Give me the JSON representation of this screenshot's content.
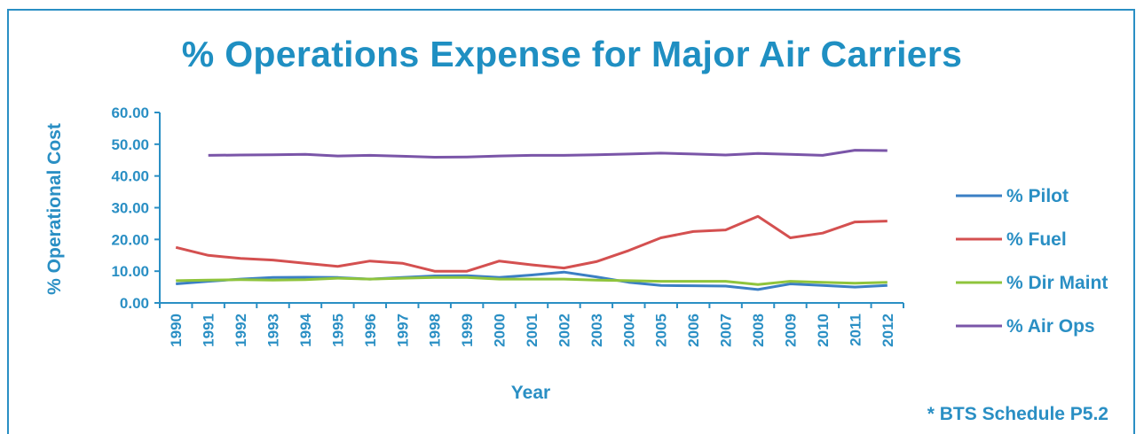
{
  "chart_data": {
    "type": "line",
    "title": "% Operations Expense for Major Air Carriers",
    "xlabel": "Year",
    "ylabel": "% Operational Cost",
    "ylim": [
      0,
      60
    ],
    "yticks": [
      "0.00",
      "10.00",
      "20.00",
      "30.00",
      "40.00",
      "50.00",
      "60.00"
    ],
    "categories": [
      "1990",
      "1991",
      "1992",
      "1993",
      "1994",
      "1995",
      "1996",
      "1997",
      "1998",
      "1999",
      "2000",
      "2001",
      "2002",
      "2003",
      "2004",
      "2005",
      "2006",
      "2007",
      "2008",
      "2009",
      "2010",
      "2011",
      "2012"
    ],
    "series": [
      {
        "name": "% Pilot",
        "color": "#3b7fc4",
        "values": [
          6.0,
          6.8,
          7.5,
          8.0,
          8.1,
          8.0,
          7.5,
          8.0,
          8.5,
          8.6,
          8.0,
          8.8,
          9.7,
          8.2,
          6.5,
          5.5,
          5.4,
          5.3,
          4.2,
          6.0,
          5.5,
          5.0,
          5.5
        ]
      },
      {
        "name": "% Fuel",
        "color": "#d45050",
        "values": [
          17.5,
          15.0,
          14.0,
          13.5,
          12.5,
          11.5,
          13.2,
          12.5,
          10.0,
          10.0,
          13.2,
          12.0,
          11.0,
          13.0,
          16.5,
          20.5,
          22.5,
          23.0,
          27.3,
          20.5,
          22.0,
          25.5,
          25.8
        ]
      },
      {
        "name": "% Dir Maint",
        "color": "#8fc43c",
        "values": [
          7.0,
          7.2,
          7.3,
          7.2,
          7.3,
          7.8,
          7.5,
          7.8,
          8.0,
          8.0,
          7.5,
          7.5,
          7.5,
          7.2,
          7.0,
          6.8,
          6.8,
          6.8,
          5.8,
          6.8,
          6.5,
          6.2,
          6.5
        ]
      },
      {
        "name": "% Air Ops",
        "color": "#7a55a8",
        "values": [
          null,
          46.5,
          46.6,
          46.7,
          46.8,
          46.3,
          46.5,
          46.2,
          45.9,
          46.0,
          46.3,
          46.5,
          46.5,
          46.7,
          46.9,
          47.2,
          46.9,
          46.6,
          47.1,
          46.8,
          46.5,
          48.1,
          48.0
        ]
      }
    ],
    "legend": "right",
    "grid": false
  },
  "source_note": "* BTS Schedule P5.2"
}
